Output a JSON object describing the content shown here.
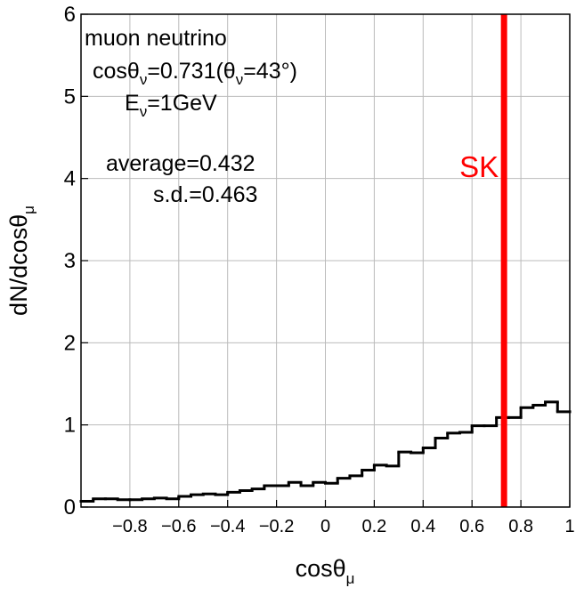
{
  "chart_data": {
    "type": "histogram-step",
    "xlabel": {
      "main": "cosθ",
      "sub": "μ"
    },
    "ylabel": {
      "main": "dN/dcosθ",
      "sub": "μ"
    },
    "bins": [
      -1,
      -0.95,
      -0.9,
      -0.85,
      -0.8,
      -0.75,
      -0.7,
      -0.65,
      -0.6,
      -0.55,
      -0.5,
      -0.45,
      -0.4,
      -0.35,
      -0.3,
      -0.25,
      -0.2,
      -0.15,
      -0.1,
      -0.05,
      0,
      0.05,
      0.1,
      0.15,
      0.2,
      0.25,
      0.3,
      0.35,
      0.4,
      0.45,
      0.5,
      0.55,
      0.6,
      0.65,
      0.7,
      0.75,
      0.8,
      0.85,
      0.9,
      0.95,
      1
    ],
    "values": [
      0.07,
      0.1,
      0.1,
      0.09,
      0.09,
      0.1,
      0.11,
      0.1,
      0.13,
      0.15,
      0.16,
      0.15,
      0.18,
      0.2,
      0.22,
      0.26,
      0.26,
      0.3,
      0.26,
      0.3,
      0.29,
      0.35,
      0.38,
      0.45,
      0.51,
      0.5,
      0.67,
      0.66,
      0.72,
      0.84,
      0.9,
      0.91,
      0.99,
      0.99,
      1.09,
      1.09,
      1.21,
      1.24,
      1.28,
      1.16
    ],
    "color": "#000000",
    "xlim": [
      -1,
      1
    ],
    "xticks": [
      {
        "value": -0.8,
        "label": "−0.8"
      },
      {
        "value": -0.6,
        "label": "−0.6"
      },
      {
        "value": -0.4,
        "label": "−0.4"
      },
      {
        "value": -0.2,
        "label": "−0.2"
      },
      0,
      0.2,
      0.4,
      0.6,
      0.8,
      1
    ],
    "ylim": [
      0,
      6
    ],
    "yticks": [
      0,
      1,
      2,
      3,
      4,
      5,
      6
    ],
    "grid": true,
    "sk_line": {
      "x": 0.731,
      "label": "SK",
      "color": "#ff0000"
    },
    "annotations": {
      "line1": "muon neutrino",
      "line2": [
        "cosθ",
        "ν",
        "=0.731(θ",
        "ν",
        "=43°)"
      ],
      "line3": [
        "E",
        "ν",
        "=1GeV"
      ],
      "line4": "average=0.432",
      "line5": "s.d.=0.463"
    }
  }
}
